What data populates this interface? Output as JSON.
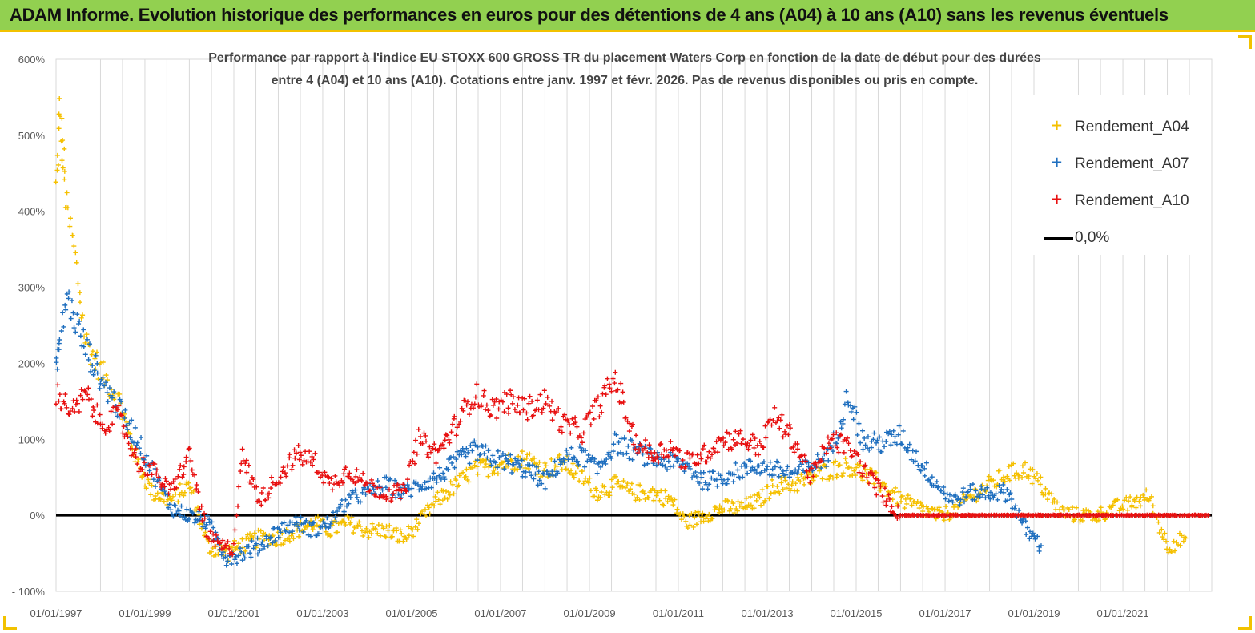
{
  "header": {
    "title": "ADAM Informe. Evolution historique des performances en euros pour des détentions de 4 ans (A04) à 10 ans (A10) sans les revenus éventuels"
  },
  "colors": {
    "header_bg": "#92d050",
    "header_accent": "#f2c200",
    "A04": "#f5c000",
    "A07": "#1f6fbf",
    "A10": "#e81010",
    "zero_line": "#000000"
  },
  "chart_data": {
    "type": "scatter",
    "title_line1": "Performance par rapport à l'indice EU STOXX 600 GROSS TR  du placement Waters Corp en  fonction de la date de début pour des durées",
    "title_line2": "entre 4 (A04) et 10 ans (A10). Cotations entre janv. 1997 et févr. 2026. Pas de revenus disponibles ou pris en compte.",
    "xlabel": "",
    "ylabel": "",
    "x_range": [
      "1997-01-01",
      "2023-01-01"
    ],
    "ylim": [
      -100,
      600
    ],
    "y_ticks": [
      -100,
      0,
      100,
      200,
      300,
      400,
      500,
      600
    ],
    "y_tick_labels": [
      "- 100%",
      "0%",
      "100%",
      "200%",
      "300%",
      "400%",
      "500%",
      "600%"
    ],
    "x_tick_labels": [
      "01/01/1997",
      "01/01/1999",
      "01/01/2001",
      "01/01/2003",
      "01/01/2005",
      "01/01/2007",
      "01/01/2009",
      "01/01/2011",
      "01/01/2013",
      "01/01/2015",
      "01/01/2017",
      "01/01/2019",
      "01/01/2021"
    ],
    "grid": "vertical every 6 months",
    "legend_position": "top-right",
    "series": [
      {
        "name": "Rendement_A04",
        "marker": "+",
        "x": [
          "1997-01",
          "1997-02",
          "1997-03",
          "1997-04",
          "1997-06",
          "1997-09",
          "1998-01",
          "1998-06",
          "1998-11",
          "1999-03",
          "1999-08",
          "2000-01",
          "2000-06",
          "2000-11",
          "2001-03",
          "2001-08",
          "2002-01",
          "2002-06",
          "2002-11",
          "2003-03",
          "2003-08",
          "2004-01",
          "2004-06",
          "2004-11",
          "2005-03",
          "2005-08",
          "2006-01",
          "2006-06",
          "2006-11",
          "2007-03",
          "2007-08",
          "2008-01",
          "2008-06",
          "2008-11",
          "2009-03",
          "2009-08",
          "2010-01",
          "2010-06",
          "2010-11",
          "2011-03",
          "2011-08",
          "2012-01",
          "2012-06",
          "2012-11",
          "2013-03",
          "2013-08",
          "2014-01",
          "2014-06",
          "2014-11",
          "2015-03",
          "2015-08",
          "2016-01",
          "2016-06",
          "2016-11",
          "2017-03",
          "2017-08",
          "2018-01",
          "2018-06",
          "2018-11",
          "2019-03",
          "2019-08",
          "2020-01",
          "2020-06",
          "2020-11",
          "2021-03",
          "2021-08",
          "2022-01",
          "2022-06"
        ],
        "y": [
          430,
          530,
          470,
          400,
          350,
          230,
          190,
          150,
          70,
          30,
          20,
          40,
          -40,
          -50,
          -40,
          -30,
          -30,
          -20,
          -10,
          -20,
          -10,
          -20,
          -20,
          -30,
          -10,
          20,
          40,
          60,
          65,
          70,
          75,
          60,
          70,
          50,
          30,
          40,
          30,
          30,
          20,
          -10,
          0,
          10,
          10,
          20,
          40,
          40,
          50,
          60,
          65,
          55,
          40,
          20,
          10,
          0,
          5,
          25,
          40,
          55,
          60,
          40,
          5,
          0,
          0,
          10,
          15,
          25,
          -40,
          -30
        ]
      },
      {
        "name": "Rendement_A07",
        "marker": "+",
        "x": [
          "1997-01",
          "1997-02",
          "1997-04",
          "1997-06",
          "1997-09",
          "1998-01",
          "1998-06",
          "1998-11",
          "1999-03",
          "1999-08",
          "2000-01",
          "2000-06",
          "2000-11",
          "2001-03",
          "2001-08",
          "2002-01",
          "2002-06",
          "2002-11",
          "2003-03",
          "2003-08",
          "2004-01",
          "2004-06",
          "2004-11",
          "2005-03",
          "2005-08",
          "2006-01",
          "2006-06",
          "2006-11",
          "2007-03",
          "2007-08",
          "2008-01",
          "2008-06",
          "2008-11",
          "2009-03",
          "2009-08",
          "2010-01",
          "2010-06",
          "2010-11",
          "2011-03",
          "2011-08",
          "2012-01",
          "2012-06",
          "2012-11",
          "2013-03",
          "2013-08",
          "2014-01",
          "2014-06",
          "2014-09",
          "2014-11",
          "2015-03",
          "2015-08",
          "2016-01",
          "2016-06",
          "2016-11",
          "2017-03",
          "2017-08",
          "2018-01",
          "2018-06",
          "2018-11",
          "2019-03"
        ],
        "y": [
          190,
          230,
          290,
          260,
          220,
          180,
          140,
          100,
          60,
          10,
          0,
          -10,
          -55,
          -50,
          -40,
          -20,
          -10,
          -20,
          -10,
          20,
          30,
          40,
          30,
          40,
          50,
          70,
          85,
          75,
          70,
          60,
          45,
          75,
          80,
          60,
          95,
          85,
          75,
          70,
          65,
          45,
          50,
          60,
          65,
          60,
          55,
          65,
          80,
          130,
          160,
          95,
          95,
          105,
          70,
          40,
          20,
          30,
          30,
          30,
          -20,
          -40
        ]
      },
      {
        "name": "Rendement_A10",
        "marker": "+",
        "x": [
          "1997-01",
          "1997-03",
          "1997-06",
          "1997-09",
          "1998-01",
          "1998-06",
          "1998-11",
          "1999-03",
          "1999-08",
          "2000-01",
          "2000-06",
          "2000-11",
          "2001-01",
          "2001-03",
          "2001-08",
          "2002-01",
          "2002-06",
          "2002-11",
          "2003-03",
          "2003-08",
          "2004-01",
          "2004-06",
          "2004-11",
          "2005-03",
          "2005-08",
          "2006-01",
          "2006-06",
          "2006-11",
          "2007-03",
          "2007-08",
          "2008-01",
          "2008-06",
          "2008-11",
          "2009-03",
          "2009-08",
          "2010-01",
          "2010-06",
          "2010-11",
          "2011-03",
          "2011-08",
          "2012-01",
          "2012-06",
          "2012-11",
          "2013-03",
          "2013-08",
          "2014-01",
          "2014-06",
          "2014-11",
          "2015-03",
          "2015-08",
          "2015-11",
          "2016-01",
          "2016-06",
          "2017-01",
          "2018-01",
          "2019-01",
          "2020-01",
          "2021-01",
          "2022-01",
          "2022-12"
        ],
        "y": [
          160,
          150,
          135,
          160,
          120,
          130,
          70,
          60,
          30,
          80,
          -30,
          -45,
          -40,
          80,
          20,
          50,
          80,
          70,
          40,
          60,
          40,
          30,
          30,
          100,
          80,
          120,
          160,
          140,
          150,
          140,
          150,
          120,
          110,
          140,
          180,
          100,
          80,
          90,
          70,
          80,
          100,
          100,
          90,
          130,
          100,
          50,
          100,
          90,
          60,
          30,
          10,
          0,
          0,
          0,
          0,
          0,
          0,
          0,
          0,
          0
        ]
      }
    ]
  },
  "legend": {
    "items": [
      {
        "label": "Rendement_A04"
      },
      {
        "label": "Rendement_A07"
      },
      {
        "label": "Rendement_A10"
      },
      {
        "label": "0,0%"
      }
    ]
  }
}
